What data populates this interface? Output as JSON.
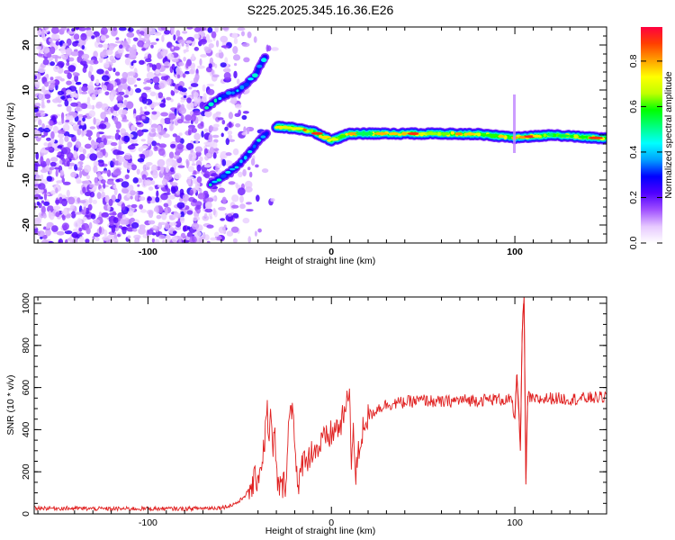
{
  "title": "S225.2025.345.16.36.E26",
  "chart_data": [
    {
      "type": "heatmap",
      "xlabel": "Height of straight line (km)",
      "ylabel": "Frequency (Hz)",
      "xlim": [
        -162,
        150
      ],
      "ylim": [
        -24,
        24
      ],
      "xticks": [
        -100,
        0,
        100
      ],
      "xtick_labels": [
        "-100",
        "0",
        "100"
      ],
      "yticks": [
        -20,
        -10,
        0,
        10,
        20
      ],
      "ytick_labels": [
        "-20",
        "-10",
        "0",
        "10",
        "20"
      ],
      "colorbar": {
        "label": "Normalized spectral amplitude",
        "range": [
          0,
          0.95
        ],
        "ticks": [
          0,
          0.2,
          0.4,
          0.6,
          0.8
        ],
        "tick_labels": [
          "0.0",
          "0.2",
          "0.4",
          "0.6",
          "0.8"
        ],
        "colors": [
          "#ffffff",
          "#e6c8ff",
          "#a050ff",
          "#5000ff",
          "#0000ff",
          "#00a0ff",
          "#00ffff",
          "#00ff80",
          "#00ff00",
          "#c0ff00",
          "#ffff00",
          "#ffa000",
          "#ff4000",
          "#ff0040"
        ]
      },
      "features": {
        "noise_region_x": [
          -162,
          -40
        ],
        "upper_branch": {
          "x": [
            -68,
            -60,
            -50,
            -42,
            -36
          ],
          "y": [
            6,
            8.5,
            10,
            13,
            17.5
          ]
        },
        "lower_branch": {
          "x": [
            -66,
            -58,
            -50,
            -44,
            -40,
            -35
          ],
          "y": [
            -11,
            -9,
            -6.5,
            -3.5,
            -1.5,
            0.5
          ]
        },
        "central_line": {
          "x": [
            -30,
            -20,
            -10,
            0,
            10,
            20,
            40,
            60,
            80,
            100,
            120,
            150
          ],
          "y": [
            1.8,
            1.5,
            0.8,
            -1.2,
            0.3,
            0.3,
            0.3,
            0.3,
            0.2,
            -0.6,
            0.0,
            -0.8
          ]
        }
      }
    },
    {
      "type": "line",
      "xlabel": "Height of straight line (km)",
      "ylabel": "SNR (10 * v/v)",
      "xlim": [
        -162,
        150
      ],
      "ylim": [
        0,
        1030
      ],
      "xticks": [
        -100,
        0,
        100
      ],
      "xtick_labels": [
        "-100",
        "0",
        "100"
      ],
      "yticks": [
        0,
        200,
        400,
        600,
        800,
        1000
      ],
      "ytick_labels": [
        "0",
        "200",
        "400",
        "600",
        "800",
        "1000"
      ],
      "color": "#e02020",
      "series": [
        {
          "name": "SNR",
          "x": [
            -162,
            -140,
            -120,
            -100,
            -80,
            -60,
            -55,
            -50,
            -45,
            -40,
            -38,
            -36,
            -35,
            -34,
            -33,
            -32,
            -31,
            -30,
            -28,
            -25,
            -23,
            -21,
            -20,
            -19,
            -18,
            -16,
            -14,
            -12,
            -10,
            -8,
            -5,
            -2,
            0,
            2,
            5,
            8,
            10,
            11,
            12,
            13,
            15,
            18,
            20,
            25,
            30,
            40,
            50,
            60,
            70,
            80,
            90,
            98,
            100,
            101,
            102,
            103,
            104,
            105,
            106,
            107,
            110,
            120,
            130,
            140,
            150
          ],
          "y": [
            28,
            26,
            24,
            25,
            24,
            30,
            40,
            60,
            110,
            180,
            240,
            380,
            520,
            330,
            480,
            260,
            420,
            180,
            120,
            150,
            460,
            520,
            380,
            200,
            90,
            240,
            280,
            260,
            320,
            300,
            340,
            360,
            380,
            400,
            420,
            500,
            590,
            240,
            420,
            160,
            300,
            440,
            460,
            500,
            520,
            530,
            540,
            530,
            540,
            540,
            545,
            540,
            450,
            660,
            530,
            300,
            860,
            1030,
            140,
            560,
            540,
            550,
            545,
            550,
            555
          ]
        }
      ]
    }
  ]
}
